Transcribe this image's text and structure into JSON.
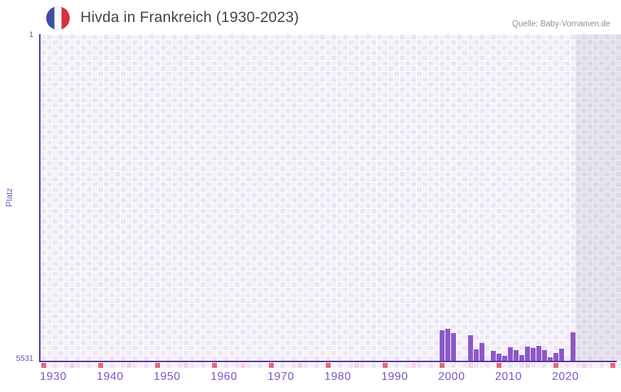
{
  "header": {
    "title": "Hivda in Frankreich (1930-2023)",
    "source": "Quelle: Baby-Vornamen.de",
    "flag_icon": "france-flag-roundel",
    "flag_colors": {
      "blue": "#3b4da5",
      "white": "#f9f9f9",
      "red": "#dc2f3f"
    }
  },
  "chart_data": {
    "type": "bar",
    "title": "Hivda in Frankreich (1930-2023)",
    "xlabel": "",
    "ylabel": "Platz",
    "y_axis": {
      "top_label": "1",
      "bottom_label": "5531",
      "min": 1,
      "max": 5531,
      "inverted": true
    },
    "x_axis": {
      "start": 1930,
      "end": 2023,
      "tick_years": [
        1930,
        1940,
        1950,
        1960,
        1970,
        1980,
        1990,
        2000,
        2010,
        2020
      ],
      "tick_interval": 10,
      "strip_start": 1930,
      "strip_end": 2031,
      "shaded_from": 2024
    },
    "grid": true,
    "legend": "none",
    "series": [
      {
        "name": "Platz",
        "points": [
          {
            "year": 2000,
            "rank": 5014
          },
          {
            "year": 2001,
            "rank": 4993
          },
          {
            "year": 2002,
            "rank": 5062
          },
          {
            "year": 2005,
            "rank": 5101
          },
          {
            "year": 2006,
            "rank": 5342
          },
          {
            "year": 2007,
            "rank": 5233
          },
          {
            "year": 2009,
            "rank": 5362
          },
          {
            "year": 2010,
            "rank": 5408
          },
          {
            "year": 2011,
            "rank": 5444
          },
          {
            "year": 2012,
            "rank": 5306
          },
          {
            "year": 2013,
            "rank": 5347
          },
          {
            "year": 2014,
            "rank": 5435
          },
          {
            "year": 2015,
            "rank": 5294
          },
          {
            "year": 2016,
            "rank": 5315
          },
          {
            "year": 2017,
            "rank": 5279
          },
          {
            "year": 2018,
            "rank": 5351
          },
          {
            "year": 2019,
            "rank": 5471
          },
          {
            "year": 2020,
            "rank": 5403
          },
          {
            "year": 2021,
            "rank": 5323
          },
          {
            "year": 2023,
            "rank": 5044
          }
        ]
      }
    ],
    "colors": {
      "bar": "#8d59c8",
      "axis_line": "#53309f",
      "grid_cell_light": "#f4f1fa",
      "grid_cell_dark": "#ebe6f4",
      "decade_marker": "#e0697b",
      "half_decade_marker": "#f3d2de",
      "x_tick_text": "#7d55c3",
      "y_tick_text": "#6e4cb0",
      "no_data_shade": "rgba(95,85,120,0.10)"
    }
  }
}
